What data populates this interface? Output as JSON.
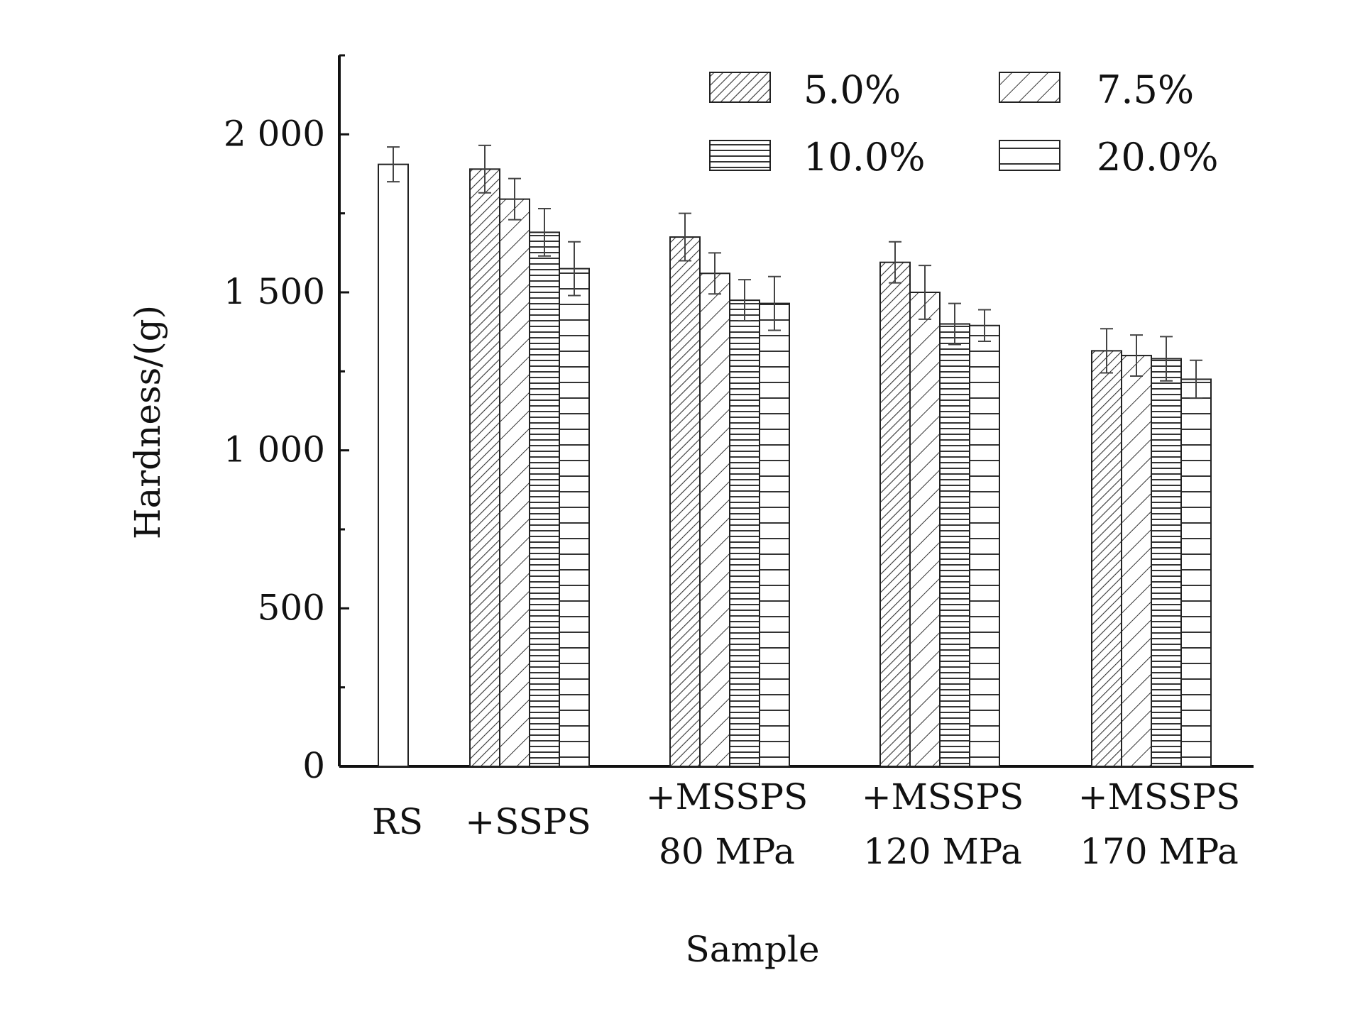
{
  "chart_data": {
    "type": "bar",
    "title": "",
    "xlabel": "Sample",
    "ylabel": "Hardness/(g)",
    "ylim": [
      0,
      2250
    ],
    "yticks": [
      0,
      500,
      1000,
      1500,
      2000
    ],
    "ytick_labels": [
      "0",
      "500",
      "1 000",
      "1 500",
      "2 000"
    ],
    "grid": false,
    "legend_position": "top-right",
    "colors": {
      "bar_fill": "#ffffff",
      "bar_stroke": "#222222",
      "hatch": "#333333",
      "axis": "#111111"
    },
    "categories": [
      {
        "lines": [
          "RS"
        ]
      },
      {
        "lines": [
          "+SSPS"
        ]
      },
      {
        "lines": [
          "+MSSPS",
          "80 MPa"
        ]
      },
      {
        "lines": [
          "+MSSPS",
          "120 MPa"
        ]
      },
      {
        "lines": [
          "+MSSPS",
          "170 MPa"
        ]
      }
    ],
    "reference": {
      "category_index": 0,
      "value": 1905,
      "error": 55,
      "pattern": "plain"
    },
    "series": [
      {
        "name": "5.0%",
        "pattern": "diag-dense",
        "values": [
          null,
          1890,
          1675,
          1595,
          1315
        ],
        "errors": [
          null,
          75,
          75,
          65,
          70
        ]
      },
      {
        "name": "7.5%",
        "pattern": "diag-sparse",
        "values": [
          null,
          1795,
          1560,
          1500,
          1300
        ],
        "errors": [
          null,
          65,
          65,
          85,
          65
        ]
      },
      {
        "name": "10.0%",
        "pattern": "horiz-dense",
        "values": [
          null,
          1690,
          1475,
          1400,
          1290
        ],
        "errors": [
          null,
          75,
          65,
          65,
          70
        ]
      },
      {
        "name": "20.0%",
        "pattern": "horiz-sparse",
        "values": [
          null,
          1575,
          1465,
          1395,
          1225
        ],
        "errors": [
          null,
          85,
          85,
          50,
          60
        ]
      }
    ]
  }
}
